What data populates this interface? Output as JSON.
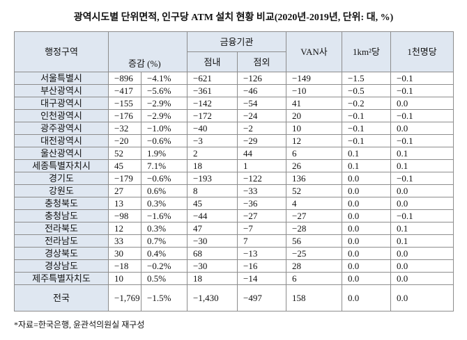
{
  "header": {
    "title": "광역시도별 단위면적, 인구당 ATM 설치 현황 비교(2020년-2019년, 단위: 대, %)"
  },
  "table": {
    "columns": {
      "region": "행정구역",
      "change": "증감 (%)",
      "finance": "금융기관",
      "inside": "점내",
      "outside": "점외",
      "van": "VAN사",
      "per_km2": "1km²당",
      "per_1000": "1천명당"
    },
    "rows": [
      [
        "서울특별시",
        "−896",
        "−4.1%",
        "−621",
        "−126",
        "−149",
        "−1.5",
        "−0.1"
      ],
      [
        "부산광역시",
        "−417",
        "−5.6%",
        "−361",
        "−46",
        "−10",
        "−0.5",
        "−0.1"
      ],
      [
        "대구광역시",
        "−155",
        "−2.9%",
        "−142",
        "−54",
        "41",
        "−0.2",
        "0.0"
      ],
      [
        "인천광역시",
        "−176",
        "−2.9%",
        "−172",
        "−24",
        "20",
        "−0.1",
        "−0.1"
      ],
      [
        "광주광역시",
        "−32",
        "−1.0%",
        "−40",
        "−2",
        "10",
        "−0.1",
        "0.0"
      ],
      [
        "대전광역시",
        "−20",
        "−0.6%",
        "−3",
        "−29",
        "12",
        "−0.1",
        "−0.1"
      ],
      [
        "울산광역시",
        "52",
        "1.9%",
        "2",
        "44",
        "6",
        "0.1",
        "0.1"
      ],
      [
        "세종특별자치시",
        "45",
        "7.1%",
        "18",
        "1",
        "26",
        "0.1",
        "0.1"
      ],
      [
        "경기도",
        "−179",
        "−0.6%",
        "−193",
        "−122",
        "136",
        "0.0",
        "−0.1"
      ],
      [
        "강원도",
        "27",
        "0.6%",
        "8",
        "−33",
        "52",
        "0.0",
        "0.0"
      ],
      [
        "충청북도",
        "13",
        "0.3%",
        "45",
        "−36",
        "4",
        "0.0",
        "0.0"
      ],
      [
        "충청남도",
        "−98",
        "−1.6%",
        "−44",
        "−27",
        "−27",
        "0.0",
        "−0.1"
      ],
      [
        "전라북도",
        "12",
        "0.3%",
        "47",
        "−7",
        "−28",
        "0.0",
        "0.1"
      ],
      [
        "전라남도",
        "33",
        "0.7%",
        "−30",
        "7",
        "56",
        "0.0",
        "0.1"
      ],
      [
        "경상북도",
        "30",
        "0.4%",
        "68",
        "−13",
        "−25",
        "0.0",
        "0.0"
      ],
      [
        "경상남도",
        "−18",
        "−0.2%",
        "−30",
        "−16",
        "28",
        "0.0",
        "0.0"
      ],
      [
        "제주특별자치도",
        "10",
        "0.5%",
        "18",
        "−14",
        "6",
        "0.0",
        "0.0"
      ],
      [
        "전국",
        "−1,769",
        "−1.5%",
        "−1,430",
        "−497",
        "158",
        "0.0",
        "0.0"
      ]
    ]
  },
  "footer": {
    "source": "*자료=한국은행, 윤관석의원실 재구성"
  }
}
